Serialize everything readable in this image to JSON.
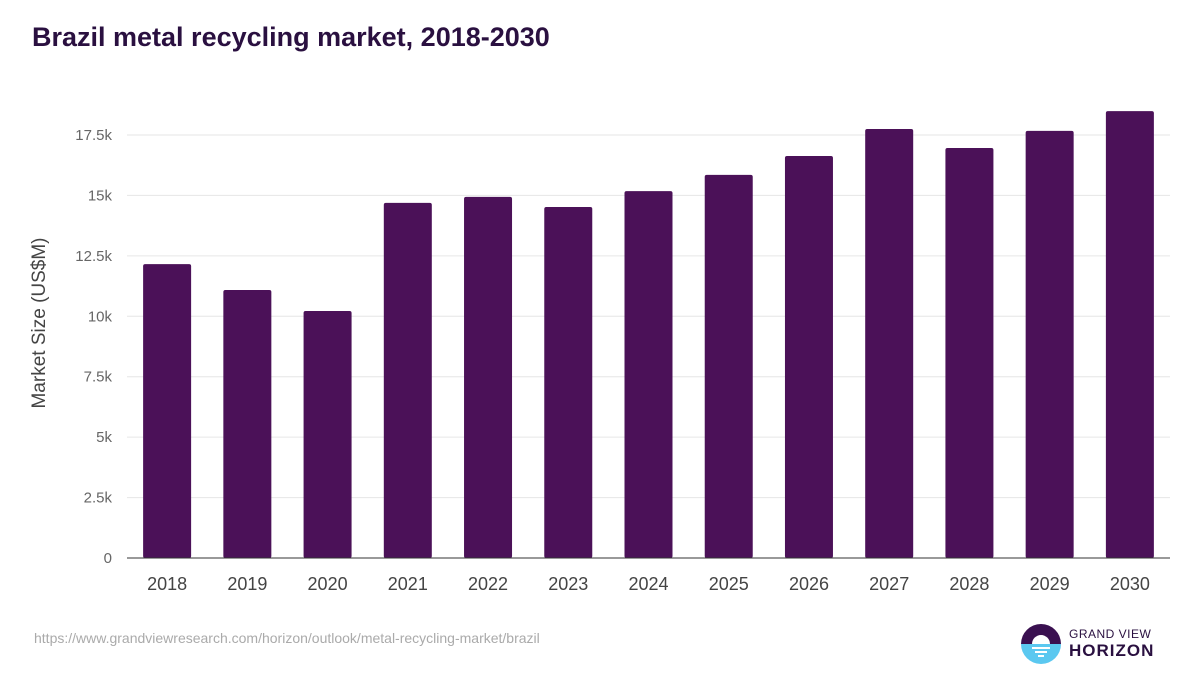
{
  "chart_data": {
    "type": "bar",
    "title": "Brazil metal recycling market, 2018-2030",
    "xlabel": "",
    "ylabel": "Market Size (US$M)",
    "categories": [
      "2018",
      "2019",
      "2020",
      "2021",
      "2022",
      "2023",
      "2024",
      "2025",
      "2026",
      "2027",
      "2028",
      "2029",
      "2030"
    ],
    "values": [
      12160,
      11090,
      10220,
      14690,
      14940,
      14520,
      15180,
      15850,
      16630,
      17750,
      16960,
      17670,
      18490
    ],
    "ylim": [
      0,
      19000
    ],
    "yticks": [
      0,
      2500,
      5000,
      7500,
      10000,
      12500,
      15000,
      17500
    ],
    "ytick_labels": [
      "0",
      "2.5k",
      "5k",
      "7.5k",
      "10k",
      "12.5k",
      "15k",
      "17.5k"
    ],
    "grid": true,
    "bar_color": "#4b1158"
  },
  "source_url": "https://www.grandviewresearch.com/horizon/outlook/metal-recycling-market/brazil",
  "logo": {
    "line1": "GRAND VIEW",
    "line2": "HORIZON"
  }
}
